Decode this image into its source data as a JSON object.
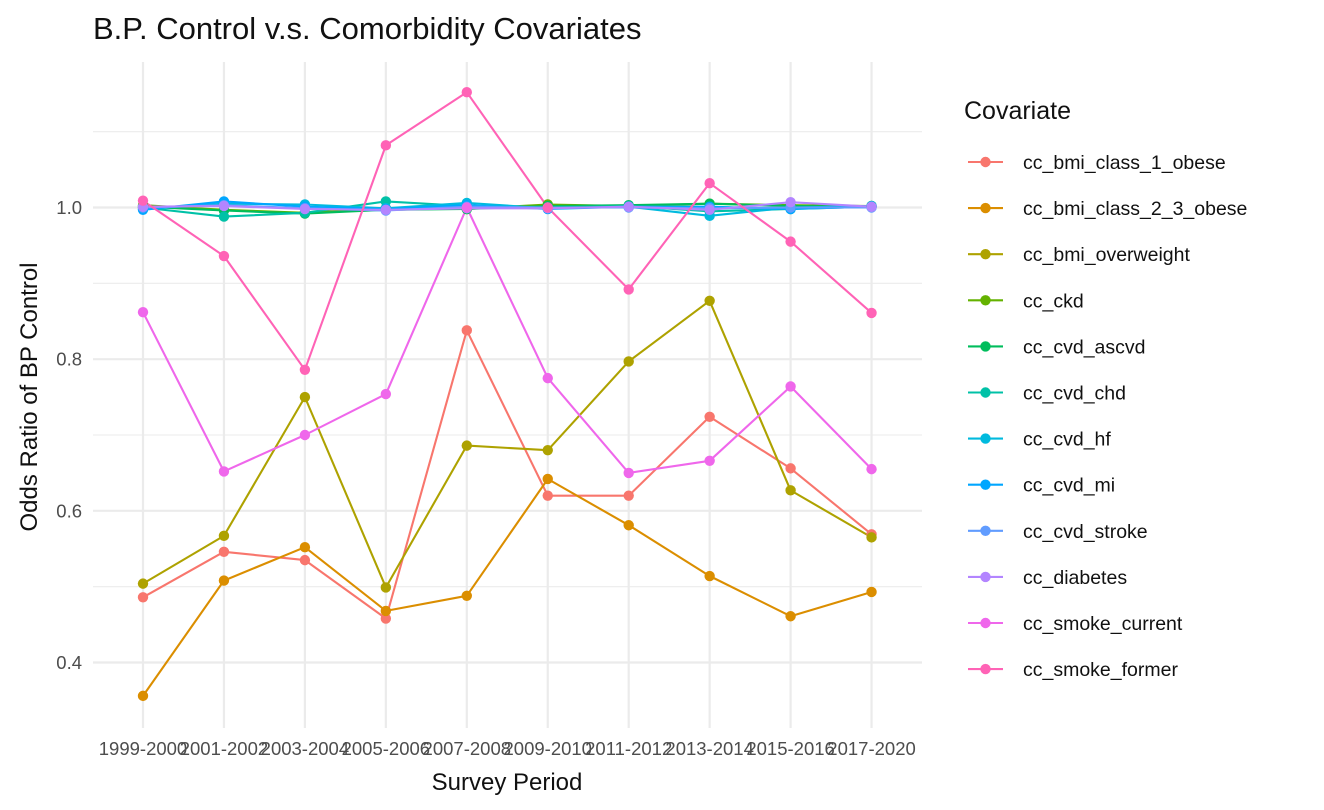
{
  "chart_data": {
    "type": "line",
    "title": "B.P. Control v.s. Comorbidity Covariates",
    "xlabel": "Survey Period",
    "ylabel": "Odds Ratio of BP Control",
    "categories": [
      "1999-2000",
      "2001-2002",
      "2003-2004",
      "2005-2006",
      "2007-2008",
      "2009-2010",
      "2011-2012",
      "2013-2014",
      "2015-2016",
      "2017-2020"
    ],
    "ylim": [
      0.33,
      1.19
    ],
    "yticks": [
      0.4,
      0.6,
      0.8,
      1.0
    ],
    "ytick_labels": [
      "0.4",
      "0.6",
      "0.8",
      "1.0"
    ],
    "grid": true,
    "legend": {
      "title": "Covariate",
      "placement": "right"
    },
    "series": [
      {
        "name": "cc_bmi_class_1_obese",
        "color": "#F8766D",
        "values": [
          0.486,
          0.546,
          0.535,
          0.458,
          0.838,
          0.62,
          0.62,
          0.724,
          0.656,
          0.569
        ]
      },
      {
        "name": "cc_bmi_class_2_3_obese",
        "color": "#DB8E00",
        "values": [
          0.356,
          0.508,
          0.552,
          0.468,
          0.488,
          0.642,
          0.581,
          0.514,
          0.461,
          0.493
        ]
      },
      {
        "name": "cc_bmi_overweight",
        "color": "#AEA200",
        "values": [
          0.504,
          0.567,
          0.75,
          0.499,
          0.686,
          0.68,
          0.797,
          0.877,
          0.627,
          0.565
        ]
      },
      {
        "name": "cc_ckd",
        "color": "#64B200",
        "values": [
          1.003,
          0.997,
          0.993,
          0.999,
          0.998,
          1.004,
          1.002,
          1.005,
          1.003,
          1.002
        ]
      },
      {
        "name": "cc_cvd_ascvd",
        "color": "#00BD5C",
        "values": [
          1.001,
          0.996,
          0.992,
          0.997,
          0.998,
          1.002,
          1.003,
          1.005,
          1.002,
          1.001
        ]
      },
      {
        "name": "cc_cvd_chd",
        "color": "#00C1A7",
        "values": [
          1.0,
          0.988,
          0.993,
          1.008,
          1.002,
          1.0,
          1.002,
          0.995,
          0.998,
          1.001
        ]
      },
      {
        "name": "cc_cvd_hf",
        "color": "#00BADE",
        "values": [
          0.998,
          1.005,
          1.004,
          0.999,
          1.006,
          0.999,
          1.001,
          0.989,
          1.0,
          1.002
        ]
      },
      {
        "name": "cc_cvd_mi",
        "color": "#00A6FF",
        "values": [
          0.997,
          1.008,
          1.001,
          0.998,
          1.003,
          0.998,
          1.001,
          1.001,
          0.998,
          1.001
        ]
      },
      {
        "name": "cc_cvd_stroke",
        "color": "#619CFF",
        "values": [
          1.0,
          1.003,
          0.999,
          0.996,
          1.001,
          1.0,
          1.0,
          0.999,
          1.0,
          1.0
        ]
      },
      {
        "name": "cc_diabetes",
        "color": "#B385FF",
        "values": [
          1.001,
          1.002,
          0.998,
          0.997,
          0.999,
          0.999,
          1.001,
          0.997,
          1.007,
          1.001
        ]
      },
      {
        "name": "cc_smoke_current",
        "color": "#EF67EB",
        "values": [
          0.862,
          0.652,
          0.7,
          0.754,
          1.0,
          0.775,
          0.65,
          0.666,
          0.764,
          0.655
        ]
      },
      {
        "name": "cc_smoke_former",
        "color": "#FF63B6",
        "values": [
          1.009,
          0.936,
          0.786,
          1.082,
          1.152,
          1.0,
          0.892,
          1.032,
          0.955,
          0.861
        ]
      }
    ]
  }
}
